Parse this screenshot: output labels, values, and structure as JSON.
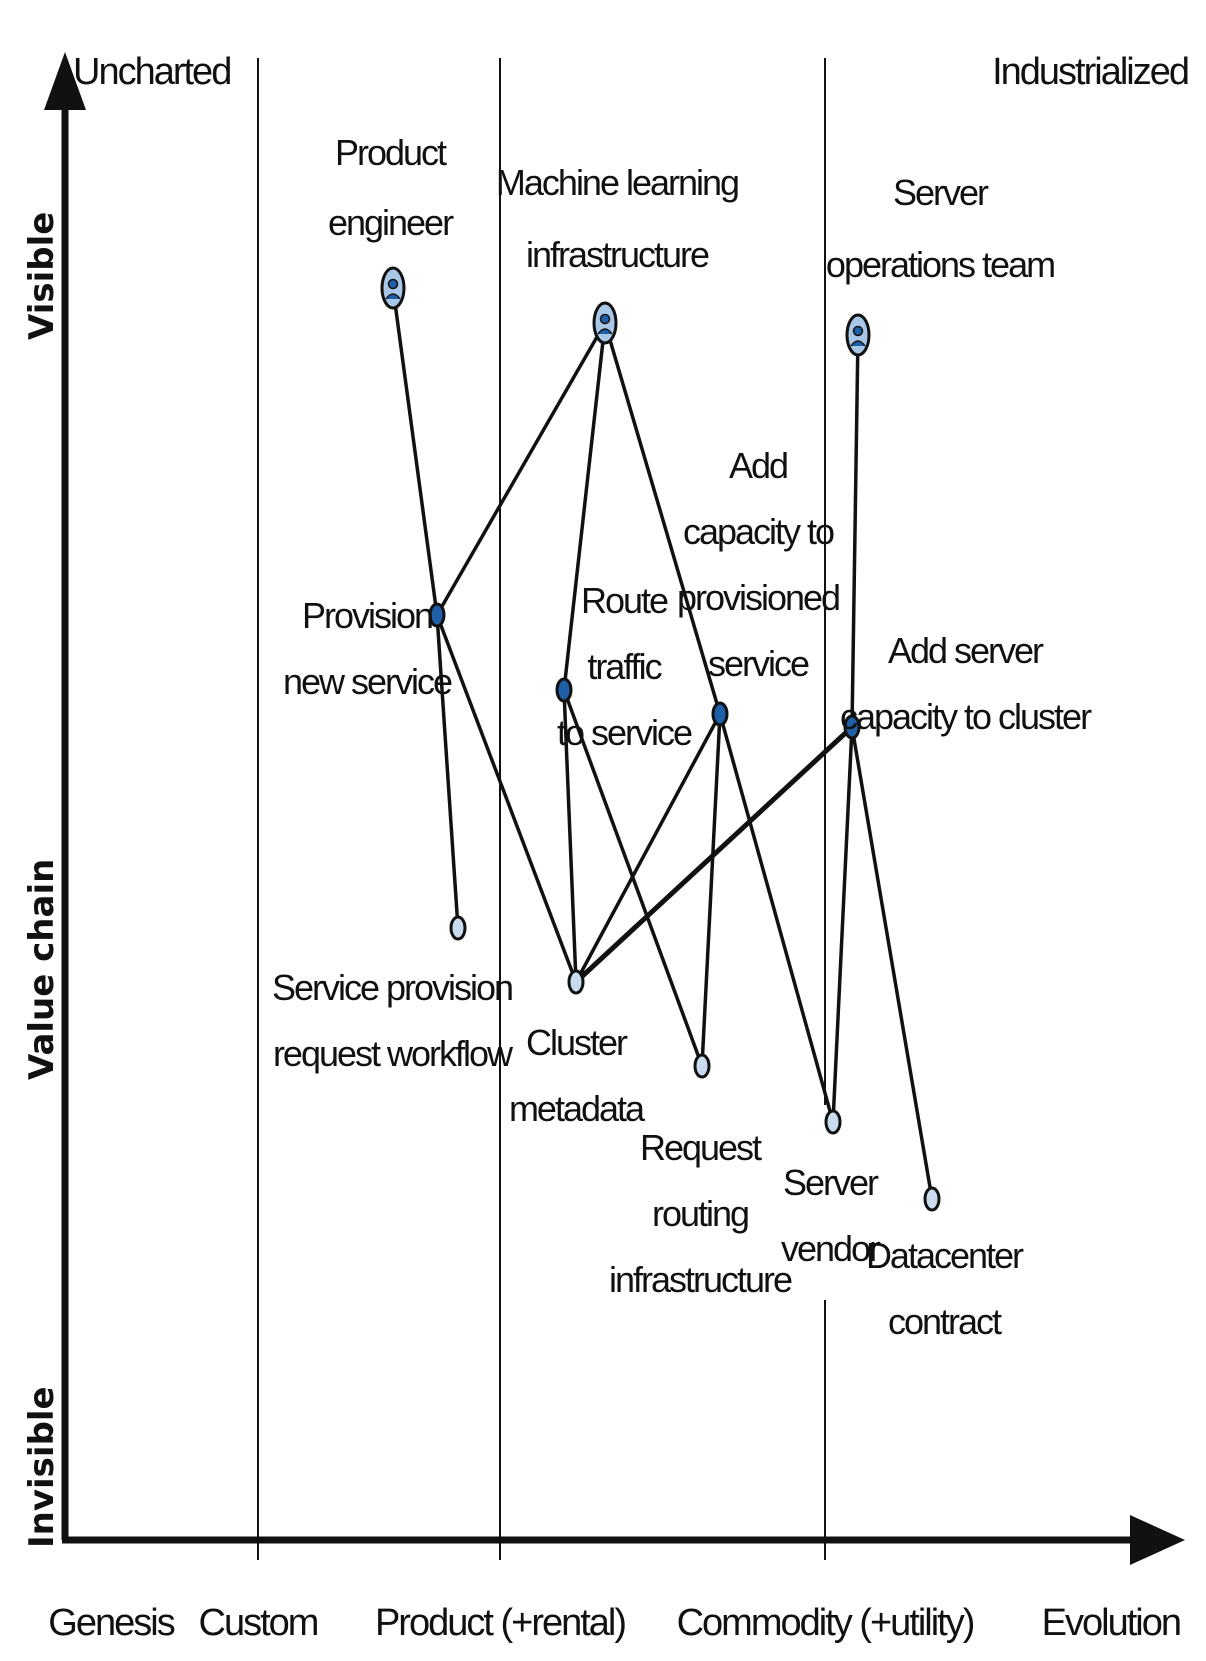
{
  "axes": {
    "x_title": "Evolution",
    "y_title": "Value chain",
    "y_top": "Visible",
    "y_bottom": "Invisible",
    "corner_left": "Uncharted",
    "corner_right": "Industrialized"
  },
  "stages": [
    "Genesis",
    "Custom",
    "Product (+rental)",
    "Commodity (+utility)"
  ],
  "nodes": {
    "product_engineer": {
      "lines": [
        "Product",
        "engineer"
      ],
      "kind": "user"
    },
    "ml_infra": {
      "lines": [
        "Machine learning",
        "infrastructure"
      ],
      "kind": "user"
    },
    "server_ops": {
      "lines": [
        "Server",
        "operations team"
      ],
      "kind": "user"
    },
    "provision_service": {
      "lines": [
        "Provision",
        "new service"
      ],
      "kind": "need"
    },
    "route_traffic": {
      "lines": [
        "Route",
        "traffic",
        "to service"
      ],
      "kind": "need"
    },
    "add_capacity": {
      "lines": [
        "Add",
        "capacity to",
        "provisioned",
        "service"
      ],
      "kind": "need"
    },
    "add_server": {
      "lines": [
        "Add server",
        "capacity to cluster"
      ],
      "kind": "need"
    },
    "provision_workflow": {
      "lines": [
        "Service provision",
        "request workflow"
      ],
      "kind": "component"
    },
    "cluster_metadata": {
      "lines": [
        "Cluster",
        "metadata"
      ],
      "kind": "component"
    },
    "request_routing": {
      "lines": [
        "Request",
        "routing",
        "infrastructure"
      ],
      "kind": "component"
    },
    "server_vendor": {
      "lines": [
        "Server",
        "vendor"
      ],
      "kind": "component"
    },
    "datacenter": {
      "lines": [
        "Datacenter",
        "contract"
      ],
      "kind": "component"
    }
  },
  "edges": [
    [
      "product_engineer",
      "provision_service"
    ],
    [
      "ml_infra",
      "provision_service"
    ],
    [
      "ml_infra",
      "route_traffic"
    ],
    [
      "ml_infra",
      "add_capacity"
    ],
    [
      "server_ops",
      "add_server"
    ],
    [
      "provision_service",
      "provision_workflow"
    ],
    [
      "provision_service",
      "cluster_metadata"
    ],
    [
      "route_traffic",
      "cluster_metadata"
    ],
    [
      "route_traffic",
      "request_routing"
    ],
    [
      "add_capacity",
      "cluster_metadata"
    ],
    [
      "add_capacity",
      "request_routing"
    ],
    [
      "add_capacity",
      "server_vendor"
    ],
    [
      "add_server",
      "cluster_metadata"
    ],
    [
      "add_server",
      "server_vendor"
    ],
    [
      "add_server",
      "datacenter"
    ]
  ],
  "colors": {
    "ink": "#111111",
    "user_fill": "#a9c7e6",
    "need_fill": "#1f5fa8",
    "component_fill": "#c9dcef"
  }
}
